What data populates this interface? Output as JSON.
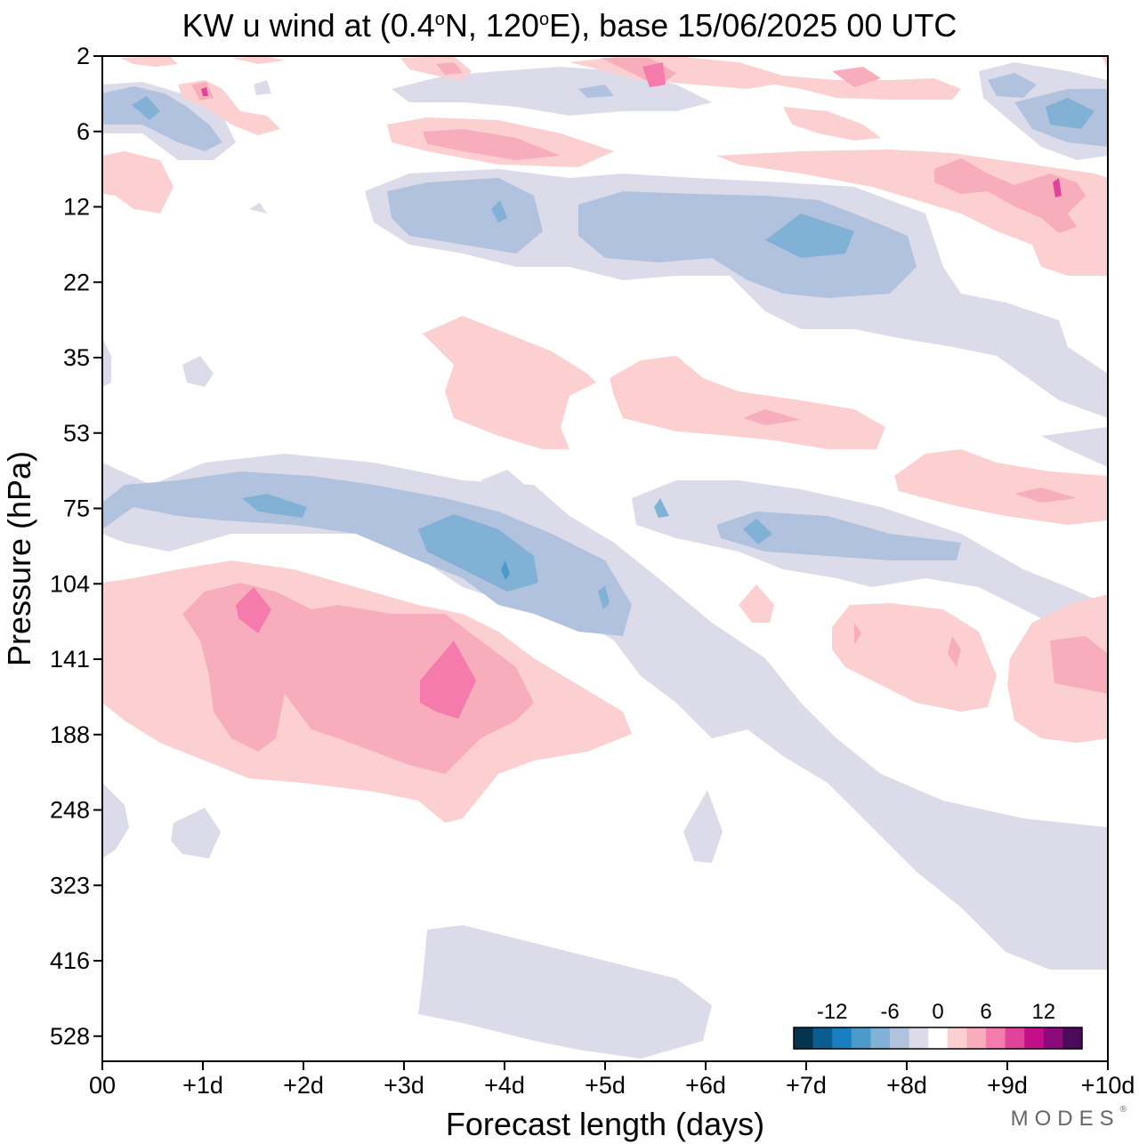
{
  "chart_data": {
    "type": "heatmap",
    "title_parts": {
      "prefix": "KW u wind at (0.4",
      "lat_sup": "o",
      "lat_suffix": "N, 120",
      "lon_sup": "o",
      "rest": "E),  base 15/06/2025  00 UTC"
    },
    "xlabel": "Forecast length (days)",
    "ylabel": "Pressure (hPa)",
    "x_tick_labels": [
      "00",
      "+1d",
      "+2d",
      "+3d",
      "+4d",
      "+5d",
      "+6d",
      "+7d",
      "+8d",
      "+9d",
      "+10d"
    ],
    "x_range_days": [
      0,
      10
    ],
    "y_tick_labels": [
      "2",
      "6",
      "12",
      "22",
      "35",
      "53",
      "75",
      "104",
      "141",
      "188",
      "248",
      "323",
      "416",
      "528"
    ],
    "y_axis_scale": "pressure levels, top = 2 hPa",
    "colorbar": {
      "tick_labels": [
        "-12",
        "-6",
        "0",
        "6",
        "12"
      ],
      "colors": [
        "#06344f",
        "#0b5d91",
        "#1880bf",
        "#4c9ac8",
        "#82b1d6",
        "#b0c2dd",
        "#dcdbea",
        "#ffffff",
        "#fcd0d0",
        "#f8adbc",
        "#f47bab",
        "#e0449a",
        "#c3108a",
        "#8d0a7d",
        "#4b0a5a"
      ]
    },
    "regions": [
      {
        "sign": "negative",
        "x_days": [
          0.0,
          4.0
        ],
        "pressure_hPa": [
          60,
          110
        ],
        "level": "-9"
      },
      {
        "sign": "negative",
        "x_days": [
          3.5,
          5.3
        ],
        "pressure_hPa": [
          85,
          130
        ],
        "level": "-6"
      },
      {
        "sign": "negative",
        "x_days": [
          3.0,
          8.5
        ],
        "pressure_hPa": [
          10,
          22
        ],
        "level": "-6"
      },
      {
        "sign": "negative",
        "x_days": [
          0.0,
          1.3
        ],
        "pressure_hPa": [
          4,
          8
        ],
        "level": "-6"
      },
      {
        "sign": "negative",
        "x_days": [
          9.0,
          10.0
        ],
        "pressure_hPa": [
          3,
          8
        ],
        "level": "-6"
      },
      {
        "sign": "negative",
        "x_days": [
          6.0,
          8.5
        ],
        "pressure_hPa": [
          75,
          100
        ],
        "level": "-6"
      },
      {
        "sign": "negative",
        "x_days": [
          3.0,
          6.0
        ],
        "pressure_hPa": [
          330,
          560
        ],
        "level": "-2"
      },
      {
        "sign": "negative",
        "x_days": [
          6.5,
          10.0
        ],
        "pressure_hPa": [
          140,
          430
        ],
        "level": "-2"
      },
      {
        "sign": "positive",
        "x_days": [
          0.0,
          5.3
        ],
        "pressure_hPa": [
          100,
          250
        ],
        "level": "9"
      },
      {
        "sign": "positive",
        "x_days": [
          3.0,
          5.0
        ],
        "pressure_hPa": [
          30,
          55
        ],
        "level": "3"
      },
      {
        "sign": "positive",
        "x_days": [
          5.0,
          7.8
        ],
        "pressure_hPa": [
          40,
          55
        ],
        "level": "3"
      },
      {
        "sign": "positive",
        "x_days": [
          2.8,
          4.7
        ],
        "pressure_hPa": [
          5,
          8
        ],
        "level": "6"
      },
      {
        "sign": "positive",
        "x_days": [
          7.5,
          10.0
        ],
        "pressure_hPa": [
          8,
          22
        ],
        "level": "6"
      },
      {
        "sign": "positive",
        "x_days": [
          7.2,
          10.0
        ],
        "pressure_hPa": [
          60,
          80
        ],
        "level": "3"
      },
      {
        "sign": "positive",
        "x_days": [
          7.0,
          10.0
        ],
        "pressure_hPa": [
          110,
          190
        ],
        "level": "6"
      },
      {
        "sign": "positive",
        "x_days": [
          0.0,
          0.7
        ],
        "pressure_hPa": [
          8,
          12
        ],
        "level": "3"
      }
    ]
  },
  "logo": {
    "text": "MODES",
    "mark": "®"
  }
}
